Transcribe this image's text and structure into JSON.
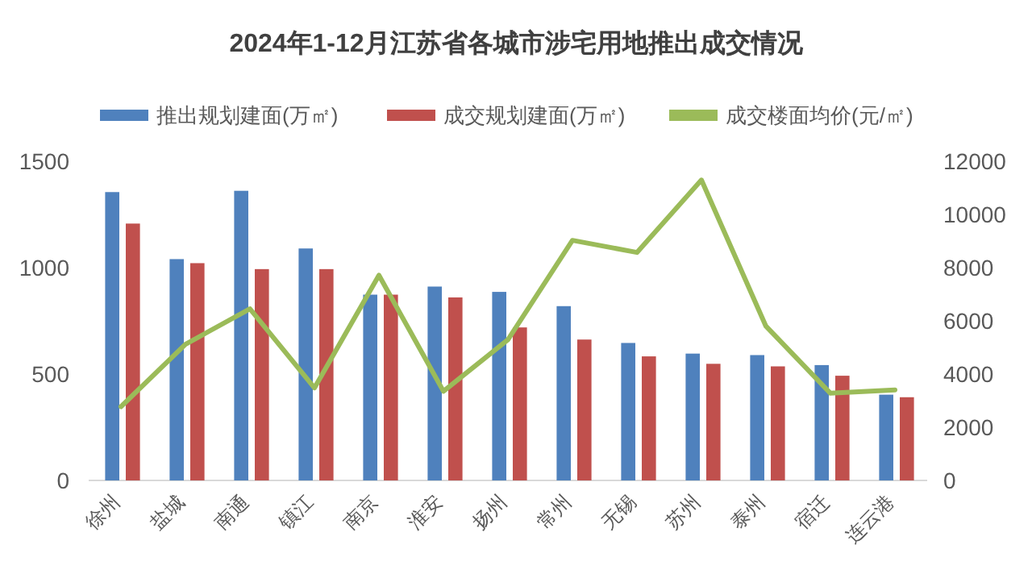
{
  "chart_data": {
    "type": "bar",
    "title": "2024年1-12月江苏省各城市涉宅用地推出成交情况",
    "categories": [
      "徐州",
      "盐城",
      "南通",
      "镇江",
      "南京",
      "淮安",
      "扬州",
      "常州",
      "无锡",
      "苏州",
      "泰州",
      "宿迁",
      "连云港"
    ],
    "series": [
      {
        "name": "推出规划建面(万㎡)",
        "color": "#4f81bd",
        "values": [
          1355,
          1040,
          1361,
          1090,
          873,
          911,
          886,
          819,
          646,
          596,
          589,
          542,
          403
        ]
      },
      {
        "name": "成交规划建面(万㎡)",
        "color": "#c0504d",
        "values": [
          1207,
          1021,
          993,
          993,
          873,
          860,
          719,
          662,
          583,
          548,
          536,
          492,
          391
        ]
      },
      {
        "name": "成交楼面均价(元/㎡)",
        "color": "#9bbb59",
        "type": "line",
        "axis": "y2",
        "values": [
          2773,
          5117,
          6453,
          3479,
          7714,
          3353,
          5294,
          9025,
          8571,
          11293,
          5798,
          3277,
          3403
        ]
      }
    ],
    "ylim": [
      0,
      1500
    ],
    "yticks": [
      0,
      500,
      1000,
      1500
    ],
    "y2lim": [
      0,
      12000
    ],
    "y2ticks": [
      0,
      2000,
      4000,
      6000,
      8000,
      10000,
      12000
    ],
    "legend": "top"
  }
}
